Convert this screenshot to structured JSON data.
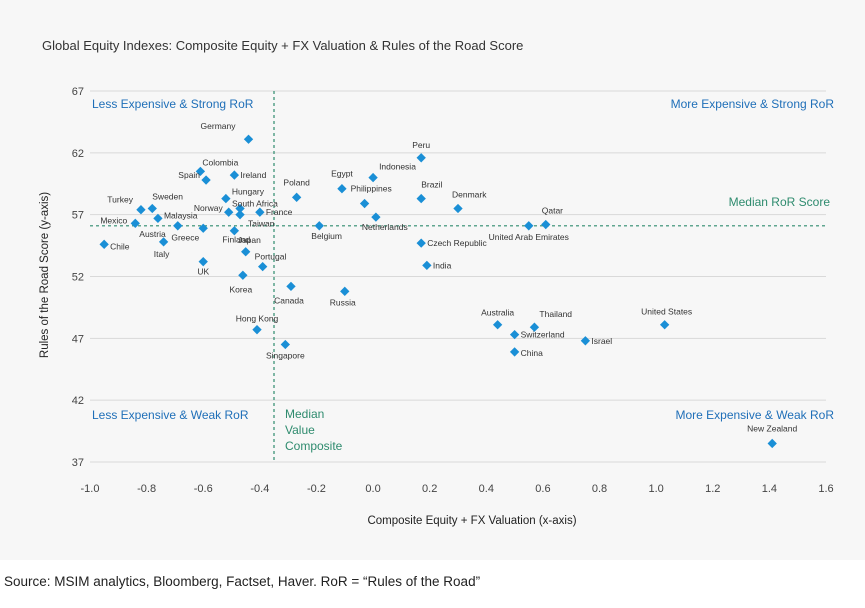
{
  "source": "Source: MSIM analytics, Bloomberg, Factset, Haver. RoR =  “Rules of the Road”",
  "colors": {
    "point": "#1a8fd6",
    "quadrant_text": "#1f6fb8",
    "median_line": "#2e8b6e",
    "grid": "#d9d9d9"
  },
  "chart_data": {
    "type": "scatter",
    "title": "Global Equity Indexes:  Composite Equity + FX Valuation & Rules of the Road Score",
    "xlabel": "Composite Equity + FX Valuation (x-axis)",
    "ylabel": "Rules of the Road Score (y-axis)",
    "xlim": [
      -1.0,
      1.6
    ],
    "ylim": [
      37,
      67
    ],
    "x_ticks": [
      "-1.0",
      "-0.8",
      "-0.6",
      "-0.4",
      "-0.2",
      "0.0",
      "0.2",
      "0.4",
      "0.6",
      "0.8",
      "1.0",
      "1.2",
      "1.4",
      "1.6"
    ],
    "y_ticks": [
      "37",
      "42",
      "47",
      "52",
      "57",
      "62",
      "67"
    ],
    "grid": "horizontal",
    "median_value_x": -0.35,
    "median_ror_y": 56.1,
    "quadrant_labels": {
      "top_left": "Less Expensive & Strong RoR",
      "top_right": "More Expensive & Strong RoR",
      "bottom_left": "Less Expensive & Weak RoR",
      "bottom_right": "More Expensive & Weak RoR"
    },
    "median_ror_label": "Median RoR Score",
    "median_value_label": [
      "Median",
      "Value",
      "Composite"
    ],
    "points": [
      {
        "name": "Germany",
        "x": -0.44,
        "y": 63.1
      },
      {
        "name": "Colombia",
        "x": -0.61,
        "y": 60.5
      },
      {
        "name": "Spain",
        "x": -0.59,
        "y": 59.8
      },
      {
        "name": "Ireland",
        "x": -0.49,
        "y": 60.2
      },
      {
        "name": "Hungary",
        "x": -0.52,
        "y": 58.3
      },
      {
        "name": "Poland",
        "x": -0.27,
        "y": 58.4
      },
      {
        "name": "Egypt",
        "x": -0.11,
        "y": 59.1
      },
      {
        "name": "Indonesia",
        "x": 0.0,
        "y": 60.0
      },
      {
        "name": "Peru",
        "x": 0.17,
        "y": 61.6
      },
      {
        "name": "Turkey",
        "x": -0.82,
        "y": 57.4
      },
      {
        "name": "Sweden",
        "x": -0.78,
        "y": 57.5
      },
      {
        "name": "Norway",
        "x": -0.51,
        "y": 57.2
      },
      {
        "name": "South Africa",
        "x": -0.47,
        "y": 57.5
      },
      {
        "name": "Philippines",
        "x": -0.03,
        "y": 57.9
      },
      {
        "name": "Brazil",
        "x": 0.17,
        "y": 58.3
      },
      {
        "name": "Denmark",
        "x": 0.3,
        "y": 57.5
      },
      {
        "name": "Mexico",
        "x": -0.84,
        "y": 56.3
      },
      {
        "name": "Malaysia",
        "x": -0.76,
        "y": 56.7
      },
      {
        "name": "France",
        "x": -0.4,
        "y": 57.2
      },
      {
        "name": "Taiwan",
        "x": -0.47,
        "y": 57.0
      },
      {
        "name": "Qatar",
        "x": 0.61,
        "y": 56.2
      },
      {
        "name": "Austria",
        "x": -0.69,
        "y": 56.1
      },
      {
        "name": "Greece",
        "x": -0.6,
        "y": 55.9
      },
      {
        "name": "Finland",
        "x": -0.49,
        "y": 55.7
      },
      {
        "name": "Belgium",
        "x": -0.19,
        "y": 56.1
      },
      {
        "name": "Netherlands",
        "x": 0.01,
        "y": 56.8
      },
      {
        "name": "United Arab Emirates",
        "x": 0.55,
        "y": 56.1
      },
      {
        "name": "Chile",
        "x": -0.95,
        "y": 54.6
      },
      {
        "name": "Italy",
        "x": -0.74,
        "y": 54.8
      },
      {
        "name": "Japan",
        "x": -0.45,
        "y": 54.0
      },
      {
        "name": "Czech Republic",
        "x": 0.17,
        "y": 54.7
      },
      {
        "name": "UK",
        "x": -0.6,
        "y": 53.2
      },
      {
        "name": "Portugal",
        "x": -0.39,
        "y": 52.8
      },
      {
        "name": "India",
        "x": 0.19,
        "y": 52.9
      },
      {
        "name": "Korea",
        "x": -0.46,
        "y": 52.1
      },
      {
        "name": "Canada",
        "x": -0.29,
        "y": 51.2
      },
      {
        "name": "Russia",
        "x": -0.1,
        "y": 50.8
      },
      {
        "name": "Hong Kong",
        "x": -0.41,
        "y": 47.7
      },
      {
        "name": "Singapore",
        "x": -0.31,
        "y": 46.5
      },
      {
        "name": "Australia",
        "x": 0.44,
        "y": 48.1
      },
      {
        "name": "Thailand",
        "x": 0.57,
        "y": 47.9
      },
      {
        "name": "Switzerland",
        "x": 0.5,
        "y": 47.3
      },
      {
        "name": "Israel",
        "x": 0.75,
        "y": 46.8
      },
      {
        "name": "China",
        "x": 0.5,
        "y": 45.9
      },
      {
        "name": "United States",
        "x": 1.03,
        "y": 48.1
      },
      {
        "name": "New Zealand",
        "x": 1.41,
        "y": 38.5
      }
    ]
  }
}
